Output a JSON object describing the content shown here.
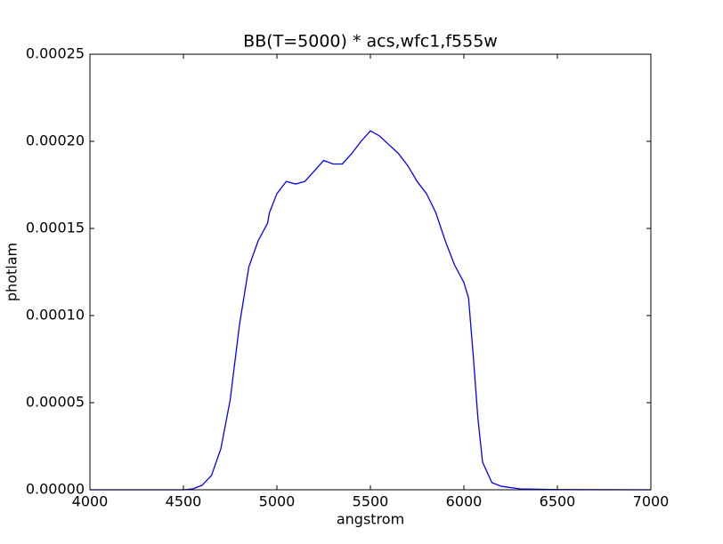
{
  "chart_data": {
    "type": "line",
    "title": "BB(T=5000) * acs,wfc1,f555w",
    "x_label": "angstrom",
    "y_label": "photlam",
    "color": "#0000ff",
    "x": [
      4000,
      4500,
      4550,
      4600,
      4650,
      4700,
      4750,
      4800,
      4850,
      4900,
      4950,
      4960,
      5000,
      5050,
      5100,
      5150,
      5200,
      5250,
      5300,
      5350,
      5400,
      5450,
      5500,
      5550,
      5600,
      5650,
      5700,
      5750,
      5800,
      5850,
      5900,
      5950,
      6000,
      6025,
      6050,
      6075,
      6100,
      6150,
      6200,
      6300,
      6500,
      7000
    ],
    "values": [
      0,
      0,
      5e-07,
      2.6e-06,
      8.2e-06,
      2.35e-05,
      5.15e-05,
      9.49e-05,
      0.000128,
      0.000143,
      0.000153,
      0.000159,
      0.00017,
      0.000177,
      0.0001755,
      0.000177,
      0.000183,
      0.000189,
      0.000187,
      0.000187,
      0.000193,
      0.0002,
      0.000206,
      0.000203,
      0.000198,
      0.000193,
      0.000186,
      0.000177,
      0.00017,
      0.000159,
      0.000143,
      0.000129,
      0.000119,
      0.00011,
      7.7e-05,
      4.1e-05,
      1.58e-05,
      4.1e-06,
      2e-06,
      5e-07,
      1e-07,
      0
    ],
    "xlim": [
      4000,
      7000
    ],
    "xticks": [
      4000,
      4500,
      5000,
      5500,
      6000,
      6500,
      7000
    ],
    "ylim": [
      0,
      0.00025
    ],
    "yticks": [
      {
        "value": 0,
        "label": "0.00000"
      },
      {
        "value": 5e-05,
        "label": "0.00005"
      },
      {
        "value": 0.0001,
        "label": "0.00010"
      },
      {
        "value": 0.00015,
        "label": "0.00015"
      },
      {
        "value": 0.0002,
        "label": "0.00020"
      },
      {
        "value": 0.00025,
        "label": "0.00025"
      }
    ]
  }
}
